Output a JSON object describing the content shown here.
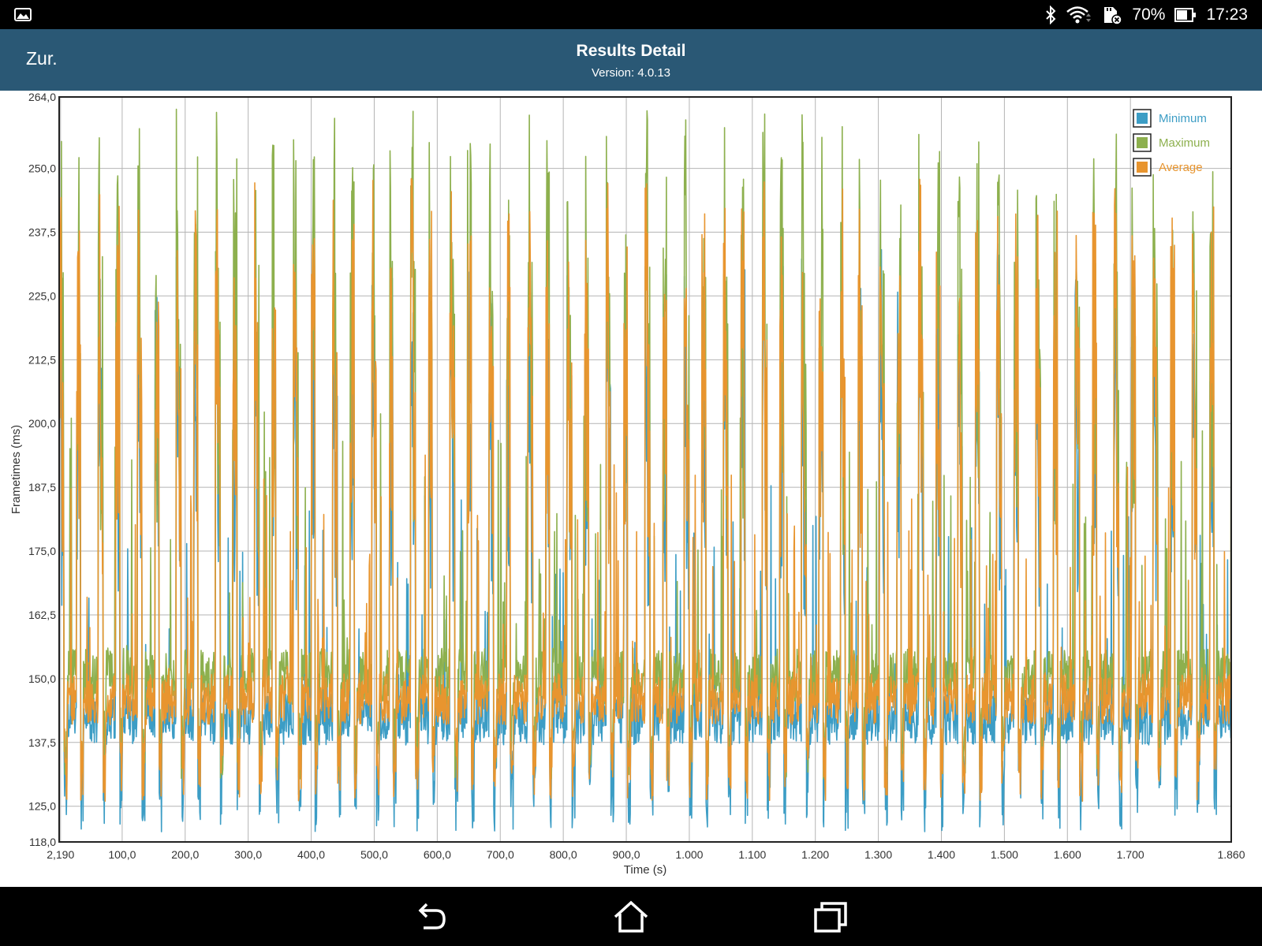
{
  "status_bar": {
    "battery": "70%",
    "time": "17:23",
    "icons": [
      "gallery-icon",
      "bluetooth-icon",
      "wifi-icon",
      "sd-card-icon",
      "battery-icon"
    ]
  },
  "header": {
    "back_label": "Zur.",
    "title": "Results Detail",
    "version": "Version: 4.0.13",
    "background": "#2a5875"
  },
  "navigation": {
    "buttons": [
      "back-icon",
      "home-icon",
      "recent-apps-icon"
    ]
  },
  "chart_data": {
    "type": "line",
    "title": "",
    "xlabel": "Time (s)",
    "ylabel": "Frametimes (ms)",
    "ylim": [
      118,
      264
    ],
    "xlim": [
      0,
      1860
    ],
    "yticks": [
      "118,0",
      "125,0",
      "137,5",
      "150,0",
      "162,5",
      "175,0",
      "187,5",
      "200,0",
      "212,5",
      "225,0",
      "237,5",
      "250,0",
      "264,0"
    ],
    "ytick_values": [
      118,
      125,
      137.5,
      150,
      162.5,
      175,
      187.5,
      200,
      212.5,
      225,
      237.5,
      250,
      264
    ],
    "xticks": [
      "2,190",
      "100,0",
      "200,0",
      "300,0",
      "400,0",
      "500,0",
      "600,0",
      "700,0",
      "800,0",
      "900,0",
      "1.000",
      "1.100",
      "1.200",
      "1.300",
      "1.400",
      "1.500",
      "1.600",
      "1.700",
      "1.860"
    ],
    "xtick_values": [
      2.19,
      100,
      200,
      300,
      400,
      500,
      600,
      700,
      800,
      900,
      1000,
      1100,
      1200,
      1300,
      1400,
      1500,
      1600,
      1700,
      1860
    ],
    "grid": true,
    "legend_position": "top-right",
    "cycle_period_s": 62,
    "series": [
      {
        "name": "Minimum",
        "color": "#3c9dc5",
        "peak": 236,
        "trough": 120,
        "base_min": 137,
        "base_max": 147
      },
      {
        "name": "Maximum",
        "color": "#8db04e",
        "peak": 262,
        "trough": 130,
        "base_min": 145,
        "base_max": 156
      },
      {
        "name": "Average",
        "color": "#e8952f",
        "peak": 248,
        "trough": 126,
        "base_min": 141,
        "base_max": 151
      }
    ]
  }
}
